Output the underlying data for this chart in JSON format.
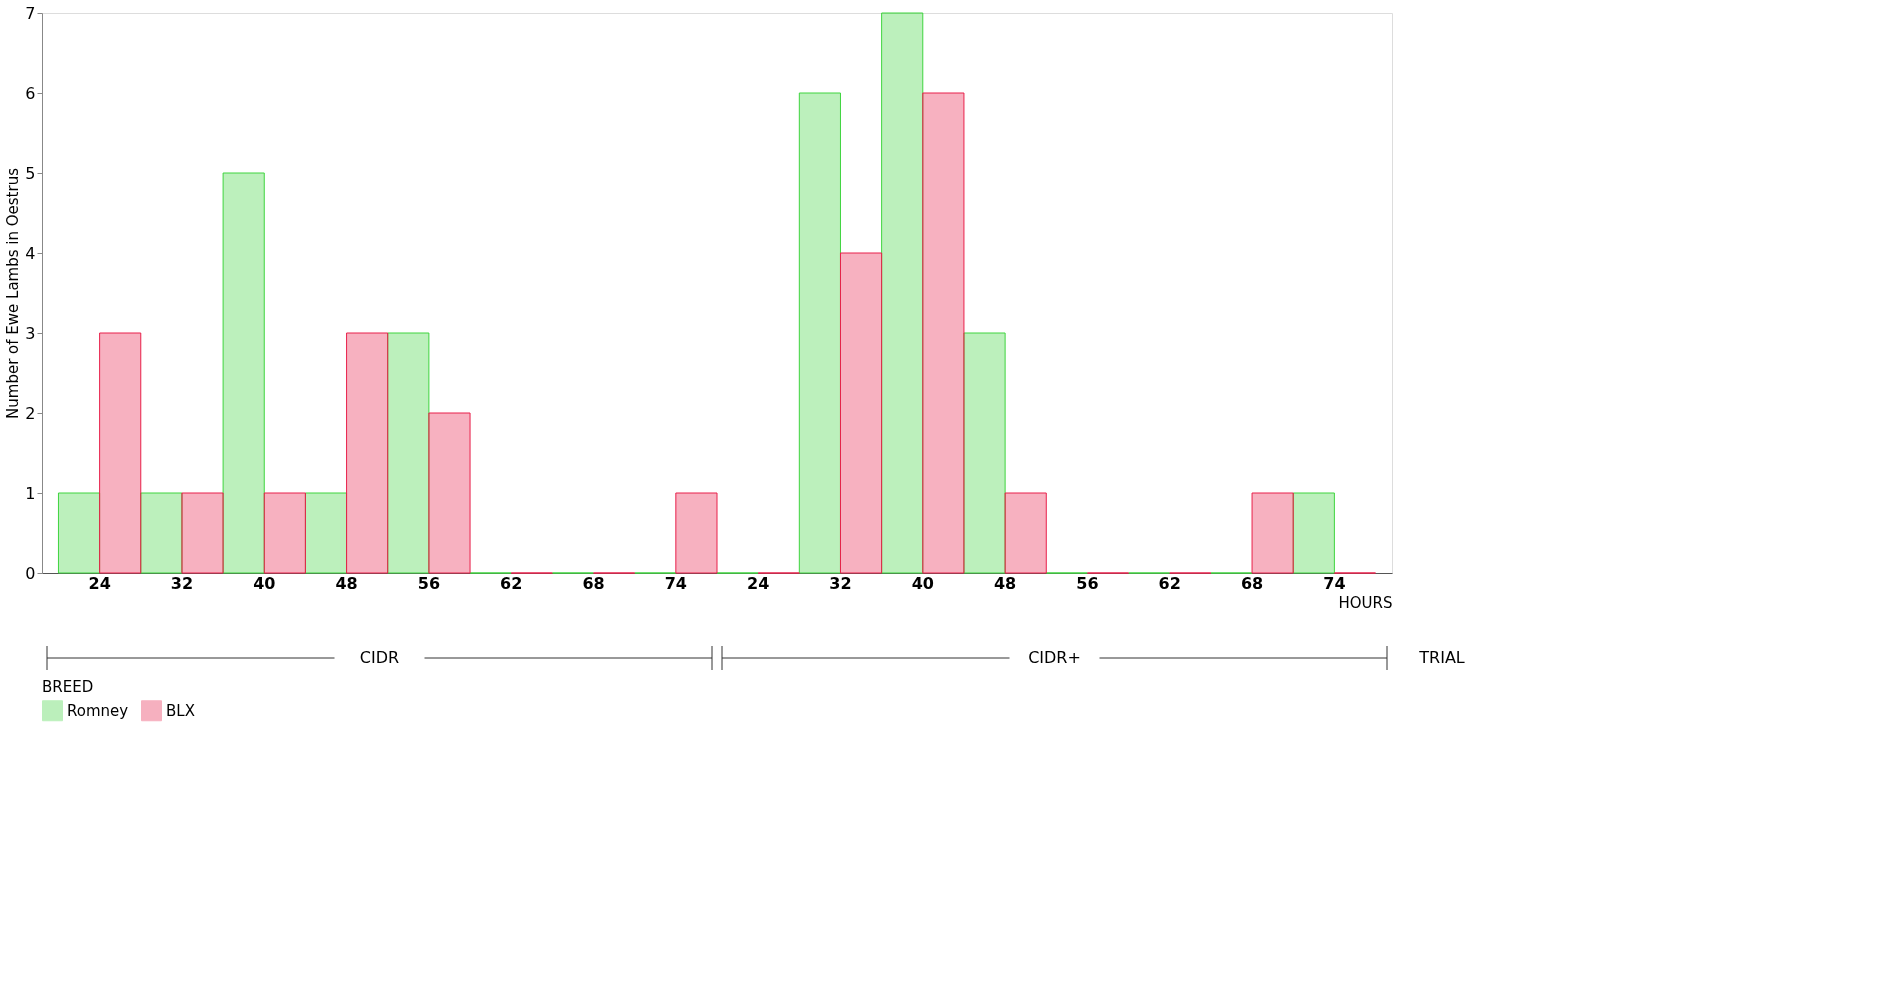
{
  "chart_data": {
    "type": "bar",
    "xlabel": "HOURS",
    "ylabel": "Number of Ewe Lambs in Oestrus",
    "legend_title": "BREED",
    "categories": [
      "24",
      "32",
      "40",
      "48",
      "56",
      "62",
      "68",
      "74",
      "24",
      "32",
      "40",
      "48",
      "56",
      "62",
      "68",
      "74"
    ],
    "series": [
      {
        "name": "Romney",
        "color": "#3fd43f",
        "values": [
          1,
          1,
          5,
          1,
          3,
          0,
          0,
          0,
          0,
          6,
          7,
          3,
          0,
          0,
          0,
          1
        ]
      },
      {
        "name": "BLX",
        "color": "#e8204a",
        "values": [
          3,
          1,
          1,
          3,
          2,
          0,
          0,
          1,
          0,
          4,
          6,
          1,
          0,
          0,
          1,
          0
        ]
      }
    ],
    "ylim": [
      0,
      7
    ],
    "yticks": [
      0,
      1,
      2,
      3,
      4,
      5,
      6,
      7
    ],
    "grid": false,
    "legend": "bottom",
    "annotations": [
      "CIDR",
      "CIDR+",
      "TRIAL"
    ]
  }
}
